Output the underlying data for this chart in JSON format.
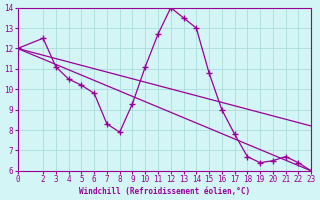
{
  "xlabel": "Windchill (Refroidissement éolien,°C)",
  "background_color": "#d4f5f5",
  "line_color": "#990099",
  "grid_color": "#aadddd",
  "xlim": [
    0,
    23
  ],
  "ylim": [
    6,
    14
  ],
  "xticks": [
    0,
    2,
    3,
    4,
    5,
    6,
    7,
    8,
    9,
    10,
    11,
    12,
    13,
    14,
    15,
    16,
    17,
    18,
    19,
    20,
    21,
    22,
    23
  ],
  "yticks": [
    6,
    7,
    8,
    9,
    10,
    11,
    12,
    13,
    14
  ],
  "zigzag_x": [
    0,
    2,
    3,
    4,
    5,
    6,
    7,
    8,
    9,
    10,
    11,
    12,
    13,
    14,
    15,
    16,
    17,
    18,
    19,
    20,
    21,
    22,
    23
  ],
  "zigzag_y": [
    12.0,
    12.5,
    11.1,
    10.5,
    10.2,
    9.8,
    8.3,
    7.9,
    9.3,
    11.1,
    12.7,
    14.0,
    13.5,
    13.0,
    10.8,
    9.0,
    7.8,
    6.7,
    6.4,
    6.5,
    6.7,
    6.4,
    6.0
  ],
  "line1_x": [
    0,
    23
  ],
  "line1_y": [
    12.0,
    6.0
  ],
  "line2_x": [
    0,
    23
  ],
  "line2_y": [
    12.0,
    8.2
  ]
}
